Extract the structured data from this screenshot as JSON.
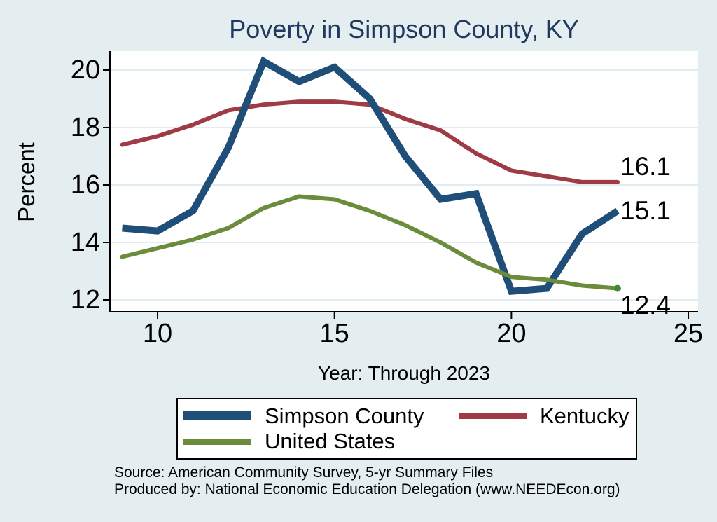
{
  "chart_data": {
    "type": "line",
    "title": "Poverty in Simpson County, KY",
    "xlabel": "Year: Through 2023",
    "ylabel": "Percent",
    "x": [
      9,
      10,
      11,
      12,
      13,
      14,
      15,
      16,
      17,
      18,
      19,
      20,
      21,
      22,
      23
    ],
    "x_ticks": [
      10,
      15,
      20,
      25
    ],
    "y_ticks": [
      12,
      14,
      16,
      18,
      20
    ],
    "xlim": [
      8.65,
      25.3
    ],
    "ylim": [
      11.6,
      20.7
    ],
    "grid": true,
    "legend_position": "bottom",
    "series": [
      {
        "name": "Simpson County",
        "color": "#1F4E79",
        "line_width": 10,
        "values": [
          14.5,
          14.4,
          15.1,
          17.3,
          20.3,
          19.6,
          20.1,
          19.0,
          17.0,
          15.5,
          15.7,
          12.3,
          12.4,
          14.3,
          15.1
        ],
        "end_label": "15.1",
        "end_dot": false
      },
      {
        "name": "Kentucky",
        "color": "#9E3B44",
        "line_width": 6,
        "values": [
          17.4,
          17.7,
          18.1,
          18.6,
          18.8,
          18.9,
          18.9,
          18.8,
          18.3,
          17.9,
          17.1,
          16.5,
          16.3,
          16.1,
          16.1
        ],
        "end_label": "16.1",
        "end_dot": false
      },
      {
        "name": "United States",
        "color": "#6B8C3A",
        "line_width": 6,
        "values": [
          13.5,
          13.8,
          14.1,
          14.5,
          15.2,
          15.6,
          15.5,
          15.1,
          14.6,
          14.0,
          13.3,
          12.8,
          12.7,
          12.5,
          12.4
        ],
        "end_label": "12.4",
        "end_dot": true,
        "end_dot_color": "#3D8B37"
      }
    ]
  },
  "colors": {
    "background": "#E4EDF0",
    "plot_background": "#FFFFFF",
    "gridline": "#E2ECF3",
    "axis": "#000000",
    "title_text": "#21395E",
    "label_text": "#000000"
  },
  "footer": {
    "source": "Source: American Community Survey, 5-yr Summary Files",
    "produced_by": "Produced by: National Economic Education Delegation (www.NEEDEcon.org)"
  }
}
